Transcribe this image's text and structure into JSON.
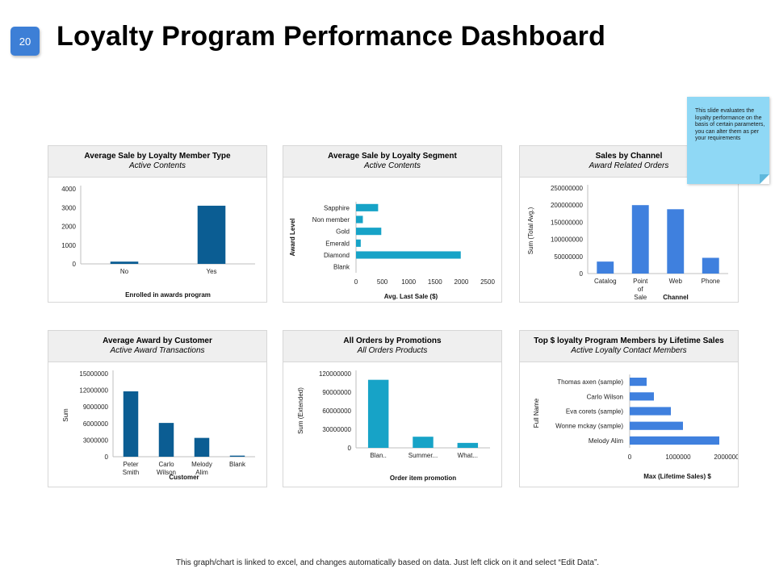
{
  "page_number": "20",
  "title": "Loyalty Program Performance Dashboard",
  "note": "This slide evaluates the loyalty performance on the basis of certain parameters, you can alter them as per your requirements",
  "footer": "This graph/chart is linked to excel, and changes automatically based on data. Just left click on it and select “Edit Data”.",
  "colors": {
    "dark_blue": "#0b5d93",
    "teal": "#17a3c7",
    "bright_blue": "#3f80de",
    "axis": "#bfbfbf"
  },
  "chart_data": [
    {
      "type": "bar",
      "title": "Average Sale by Loyalty Member Type",
      "subtitle": "Active Contents",
      "categories": [
        "No",
        "Yes"
      ],
      "values": [
        120,
        3100
      ],
      "xlabel": "Enrolled in awards program",
      "ylabel": "",
      "ylim": [
        0,
        4000
      ],
      "yticks": [
        "0",
        "1000",
        "2000",
        "3000",
        "4000"
      ]
    },
    {
      "type": "bar",
      "orientation": "horizontal",
      "title": "Average Sale by Loyalty Segment",
      "subtitle": "Active Contents",
      "categories": [
        "Sapphire",
        "Non member",
        "Gold",
        "Emerald",
        "Diamond",
        "Blank"
      ],
      "values": [
        420,
        130,
        480,
        90,
        1990,
        0
      ],
      "xlabel": "Avg. Last Sale ($)",
      "ylabel": "Award Level",
      "xlim": [
        0,
        2500
      ],
      "xticks": [
        "0",
        "500",
        "1000",
        "1500",
        "2000",
        "2500"
      ]
    },
    {
      "type": "bar",
      "title": "Sales by Channel",
      "subtitle": "Award Related Orders",
      "categories": [
        "Catalog",
        "Point of Sale",
        "Web",
        "Phone"
      ],
      "values": [
        35000000,
        200000000,
        188000000,
        46000000
      ],
      "xlabel": "Channel",
      "ylabel": "Sum (Total Avg.)",
      "ylim": [
        0,
        250000000
      ],
      "yticks": [
        "0",
        "50000000",
        "100000000",
        "150000000",
        "200000000",
        "250000000"
      ]
    },
    {
      "type": "bar",
      "title": "Average Award by Customer",
      "subtitle": "Active Award Transactions",
      "categories": [
        "Peter Smith",
        "Carlo Wilson",
        "Melody Alim",
        "Blank"
      ],
      "values": [
        11800000,
        6100000,
        3400000,
        200000
      ],
      "xlabel": "Customer",
      "ylabel": "Sum",
      "ylim": [
        0,
        15000000
      ],
      "yticks": [
        "0",
        "3000000",
        "6000000",
        "9000000",
        "12000000",
        "15000000"
      ]
    },
    {
      "type": "bar",
      "title": "All Orders by Promotions",
      "subtitle": "All Orders Products",
      "categories": [
        "Blan..",
        "Summer...",
        "What..."
      ],
      "values": [
        110000000,
        18000000,
        8000000
      ],
      "xlabel": "Order item promotion",
      "ylabel": "Sum (Extended)",
      "ylim": [
        0,
        120000000
      ],
      "yticks": [
        "0",
        "30000000",
        "60000000",
        "90000000",
        "120000000"
      ]
    },
    {
      "type": "bar",
      "orientation": "horizontal",
      "title": "Top $ loyalty Program Members by Lifetime Sales",
      "subtitle": "Active Loyalty Contact Members",
      "categories": [
        "Thomas axen (sample)",
        "Carlo Wilson",
        "Eva corets (sample)",
        "Wonne mckay (sample)",
        "Melody Alim"
      ],
      "values": [
        350000,
        500000,
        850000,
        1100000,
        1850000
      ],
      "xlabel": "Max (Lifetime Sales) $",
      "ylabel": "Full Name",
      "xlim": [
        0,
        2000000
      ],
      "xticks": [
        "0",
        "1000000",
        "2000000"
      ]
    }
  ]
}
